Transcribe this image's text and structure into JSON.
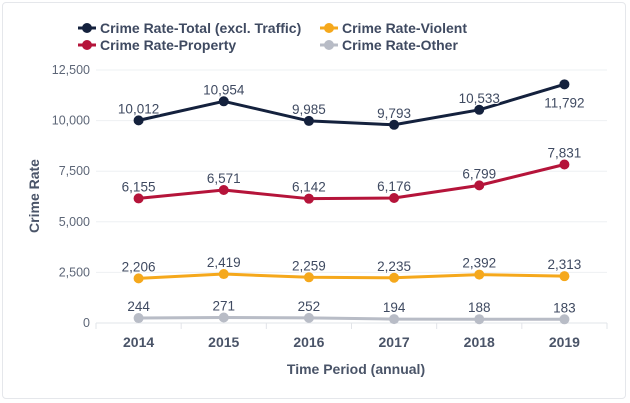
{
  "chart_data": {
    "type": "line",
    "title": "",
    "xlabel": "Time Period (annual)",
    "ylabel": "Crime Rate",
    "x": [
      "2014",
      "2015",
      "2016",
      "2017",
      "2018",
      "2019"
    ],
    "ylim": [
      0,
      12500
    ],
    "yticks": [
      0,
      2500,
      5000,
      7500,
      10000,
      12500
    ],
    "ytick_labels": [
      "0",
      "2,500",
      "5,000",
      "7,500",
      "10,000",
      "12,500"
    ],
    "grid": true,
    "legend_position": "top-left",
    "series": [
      {
        "name": "Crime Rate-Total (excl. Traffic)",
        "color": "#14213d",
        "values": [
          10012,
          10954,
          9985,
          9793,
          10533,
          11792
        ],
        "labels": [
          "10,012",
          "10,954",
          "9,985",
          "9,793",
          "10,533",
          "11,792"
        ]
      },
      {
        "name": "Crime Rate-Violent",
        "color": "#f5a81c",
        "values": [
          2206,
          2419,
          2259,
          2235,
          2392,
          2313
        ],
        "labels": [
          "2,206",
          "2,419",
          "2,259",
          "2,235",
          "2,392",
          "2,313"
        ]
      },
      {
        "name": "Crime Rate-Property",
        "color": "#b5143a",
        "values": [
          6155,
          6571,
          6142,
          6176,
          6799,
          7831
        ],
        "labels": [
          "6,155",
          "6,571",
          "6,142",
          "6,176",
          "6,799",
          "7,831"
        ]
      },
      {
        "name": "Crime Rate-Other",
        "color": "#b8bcc6",
        "values": [
          244,
          271,
          252,
          194,
          188,
          183
        ],
        "labels": [
          "244",
          "271",
          "252",
          "194",
          "188",
          "183"
        ]
      }
    ]
  }
}
